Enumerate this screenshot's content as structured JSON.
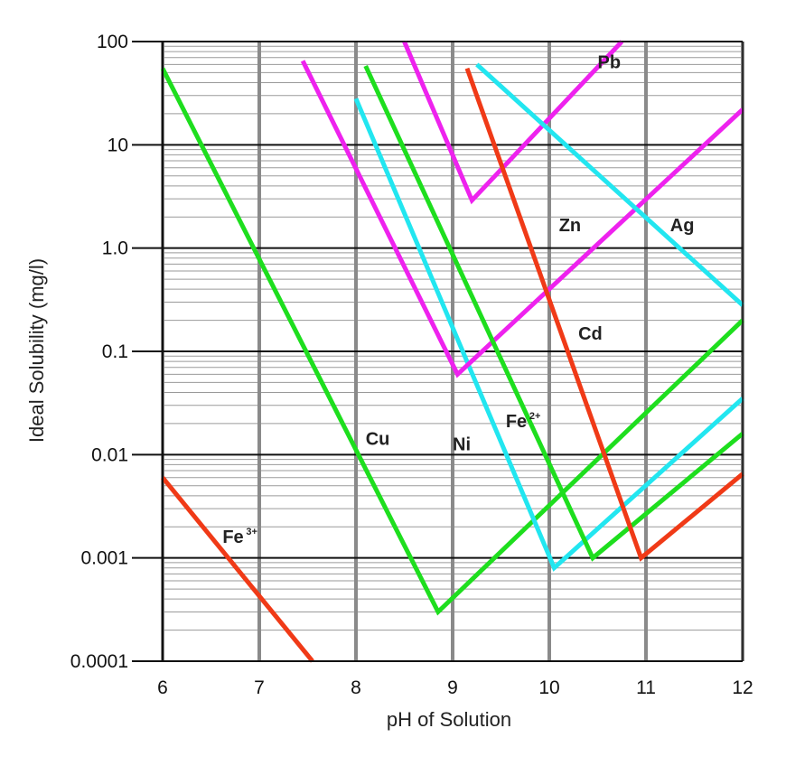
{
  "chart_data": {
    "type": "line",
    "xlabel": "pH of Solution",
    "ylabel": "Ideal Solubility (mg/l)",
    "xlim": [
      6,
      12
    ],
    "ylim": [
      0.0001,
      100
    ],
    "yscale": "log",
    "grid": "on",
    "x_ticks": [
      "6",
      "7",
      "8",
      "9",
      "10",
      "11",
      "12"
    ],
    "y_ticks": [
      "100",
      "10",
      "1.0",
      "0.1",
      "0.01",
      "0.001",
      "0.0001"
    ],
    "colors": {
      "Fe3+": "#f03a17",
      "Cu": "#1ede1e",
      "Ni": "#22e6f0",
      "Zn": "#ee22ee",
      "Pb": "#ee22ee",
      "Fe2+": "#1ede1e",
      "Cd": "#f03a17",
      "Ag": "#22e6f0"
    },
    "series": [
      {
        "name": "Fe",
        "charge": "3+",
        "points": [
          [
            6.0,
            0.006
          ],
          [
            7.55,
            0.0001
          ]
        ]
      },
      {
        "name": "Cu",
        "points": [
          [
            6.0,
            55
          ],
          [
            8.85,
            0.0003
          ],
          [
            12.0,
            0.2
          ]
        ]
      },
      {
        "name": "Ni",
        "points": [
          [
            8.0,
            28
          ],
          [
            10.05,
            0.0008
          ],
          [
            12.0,
            0.035
          ]
        ]
      },
      {
        "name": "Zn",
        "points": [
          [
            7.45,
            65
          ],
          [
            9.05,
            0.06
          ],
          [
            12.0,
            22
          ]
        ]
      },
      {
        "name": "Pb",
        "points": [
          [
            8.5,
            100
          ],
          [
            9.2,
            2.9
          ],
          [
            10.75,
            100
          ]
        ]
      },
      {
        "name": "Fe",
        "charge": "2+",
        "points": [
          [
            8.1,
            58
          ],
          [
            10.45,
            0.001
          ],
          [
            12.0,
            0.016
          ]
        ]
      },
      {
        "name": "Cd",
        "points": [
          [
            9.15,
            55
          ],
          [
            10.95,
            0.001
          ],
          [
            12.0,
            0.0065
          ]
        ]
      },
      {
        "name": "Ag",
        "points": [
          [
            9.25,
            60
          ],
          [
            12.0,
            0.28
          ]
        ]
      }
    ],
    "labels": [
      {
        "text": "Fe",
        "sup": "3+",
        "x": 6.62,
        "y": 0.0014
      },
      {
        "text": "Cu",
        "x": 8.1,
        "y": 0.0125
      },
      {
        "text": "Ni",
        "x": 9.0,
        "y": 0.011
      },
      {
        "text": "Fe",
        "sup": "2+",
        "x": 9.55,
        "y": 0.0185
      },
      {
        "text": "Zn",
        "x": 10.1,
        "y": 1.45
      },
      {
        "text": "Cd",
        "x": 10.3,
        "y": 0.13
      },
      {
        "text": "Pb",
        "x": 10.5,
        "y": 55
      },
      {
        "text": "Ag",
        "x": 11.25,
        "y": 1.45
      }
    ]
  }
}
